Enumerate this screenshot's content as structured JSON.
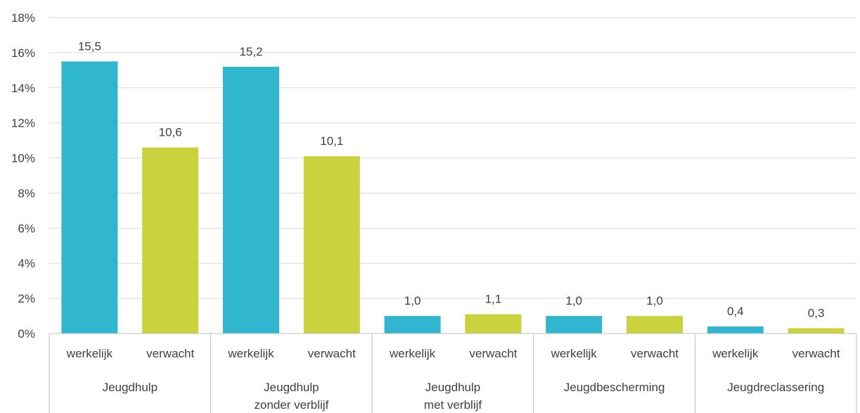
{
  "chart_data": {
    "type": "bar",
    "groups": [
      {
        "label_lines": [
          "Jeugdhulp"
        ],
        "subcategories": [
          "werkelijk",
          "verwacht"
        ],
        "values": [
          15.5,
          10.6
        ]
      },
      {
        "label_lines": [
          "Jeugdhulp",
          "zonder verblijf"
        ],
        "subcategories": [
          "werkelijk",
          "verwacht"
        ],
        "values": [
          15.2,
          10.1
        ]
      },
      {
        "label_lines": [
          "Jeugdhulp",
          "met verblijf"
        ],
        "subcategories": [
          "werkelijk",
          "verwacht"
        ],
        "values": [
          1.0,
          1.1
        ]
      },
      {
        "label_lines": [
          "Jeugdbescherming"
        ],
        "subcategories": [
          "werkelijk",
          "verwacht"
        ],
        "values": [
          1.0,
          1.0
        ]
      },
      {
        "label_lines": [
          "Jeugdreclassering"
        ],
        "subcategories": [
          "werkelijk",
          "verwacht"
        ],
        "values": [
          0.4,
          0.3
        ]
      }
    ],
    "data_labels": [
      [
        "15,5",
        "10,6"
      ],
      [
        "15,2",
        "10,1"
      ],
      [
        "1,0",
        "1,1"
      ],
      [
        "1,0",
        "1,0"
      ],
      [
        "0,4",
        "0,3"
      ]
    ],
    "y_ticks": [
      "0%",
      "2%",
      "4%",
      "6%",
      "8%",
      "10%",
      "12%",
      "14%",
      "16%",
      "18%"
    ],
    "ylim": [
      0,
      18
    ],
    "grid": true,
    "legend": "none",
    "colors": {
      "werkelijk": "#31b6cf",
      "verwacht": "#cad23d",
      "grid": "#d9d9d9",
      "axis": "#bfbfbf",
      "text": "#404040"
    }
  }
}
